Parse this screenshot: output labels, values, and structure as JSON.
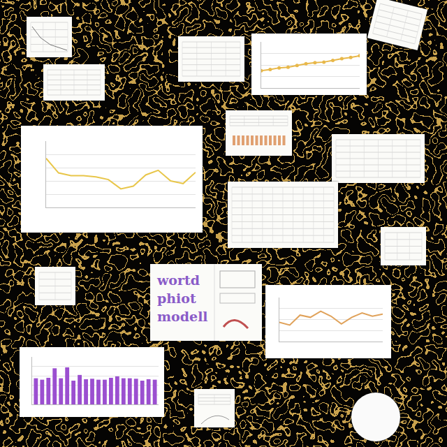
{
  "chart_data": [
    {
      "type": "line",
      "categories": [
        null,
        null,
        null,
        null,
        null,
        null,
        null,
        null,
        null,
        null,
        null,
        null,
        null
      ],
      "values": [
        7.4,
        5.2,
        4.8,
        4.8,
        4.6,
        4.2,
        2.8,
        3.2,
        4.9,
        5.6,
        4.0,
        3.6,
        5.3
      ],
      "color": "#e8c64a",
      "ylim": [
        0,
        10
      ],
      "yticks": [
        0,
        2,
        4,
        6,
        8,
        10
      ],
      "grid": true,
      "tick_labels": false
    },
    {
      "type": "line",
      "categories": [
        null,
        null,
        null,
        null,
        null,
        null,
        null,
        null,
        null,
        null,
        null
      ],
      "values": [
        3.5,
        3.0,
        4.8,
        4.4,
        5.5,
        4.6,
        3.2,
        4.4,
        5.2,
        4.6,
        5.0
      ],
      "color": "#e0a25a",
      "ylim": [
        0,
        8
      ],
      "yticks": [
        0,
        2,
        4,
        6,
        8
      ],
      "grid": true,
      "tick_labels": false
    },
    {
      "type": "bar",
      "categories": [
        null,
        null,
        null,
        null,
        null,
        null,
        null,
        null,
        null,
        null,
        null,
        null,
        null,
        null,
        null,
        null,
        null,
        null,
        null,
        null
      ],
      "values": [
        5.5,
        5.2,
        5.6,
        7.6,
        5.5,
        7.8,
        5.0,
        6.2,
        5.3,
        5.4,
        5.2,
        5.2,
        5.6,
        5.9,
        5.5,
        5.5,
        5.4,
        5.0,
        5.3,
        5.2
      ],
      "color": "#9b4fd0",
      "ylim": [
        0,
        10
      ],
      "yticks": [
        0,
        2,
        4,
        6,
        8,
        10
      ],
      "grid": true,
      "tick_labels": false
    },
    {
      "type": "line",
      "categories": [
        null,
        null,
        null,
        null,
        null,
        null,
        null,
        null,
        null,
        null,
        null,
        null
      ],
      "values": [
        3.0,
        3.2,
        3.5,
        3.6,
        3.9,
        4.2,
        4.4,
        4.5,
        4.8,
        5.1,
        5.3,
        5.6
      ],
      "color": "#e8b84a",
      "marker": "circle",
      "ylim": [
        0,
        8
      ],
      "yticks": [
        0,
        2,
        4,
        6,
        8
      ],
      "grid": true,
      "tick_labels": false
    }
  ],
  "booklet": {
    "text": [
      "wortd",
      "phiot",
      "modell"
    ]
  }
}
